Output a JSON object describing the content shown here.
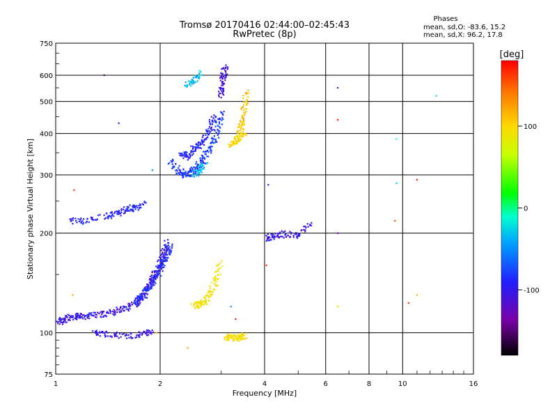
{
  "chart_data": {
    "type": "scatter",
    "title": "Tromsø 20170416 02:44:00–02:45:43",
    "subtitle": "RwPretec (8p)",
    "xlabel": "Frequency [MHz]",
    "ylabel": "Stationary phase Virtual Height [km]",
    "x_scale": "log2",
    "y_scale": "log",
    "xlim": [
      1,
      16
    ],
    "ylim": [
      75,
      750
    ],
    "x_ticks": [
      1,
      2,
      4,
      6,
      8,
      10,
      16
    ],
    "y_ticks": [
      75,
      100,
      200,
      300,
      400,
      500,
      600,
      750
    ],
    "phase_stats": {
      "title": "Phases",
      "line_o": "mean, sd,O: -83.6, 15.2",
      "line_x": "mean, sd,X:  96.2, 17.8"
    },
    "colorbar": {
      "label": "[deg]",
      "range": [
        -180,
        180
      ],
      "ticks": [
        100,
        0,
        -100
      ]
    },
    "traces": [
      {
        "name": "o-trace-low",
        "x": [
          1.02,
          1.05,
          1.1,
          1.15,
          1.2,
          1.3,
          1.4,
          1.5,
          1.6,
          1.7,
          1.75,
          1.8,
          1.85,
          1.9,
          1.95,
          2.0,
          2.05,
          2.1
        ],
        "y": [
          108,
          109,
          111,
          112,
          112,
          113,
          114,
          116,
          119,
          122,
          126,
          131,
          138,
          145,
          152,
          160,
          175,
          190
        ],
        "phase": -110
      },
      {
        "name": "o-trace-low-b",
        "x": [
          1.7,
          1.8,
          1.9,
          2.0,
          2.05,
          2.1,
          2.15
        ],
        "y": [
          124,
          130,
          140,
          155,
          165,
          172,
          185
        ],
        "phase": -95
      },
      {
        "name": "o-trace-mid",
        "x": [
          2.15,
          2.25,
          2.35,
          2.45,
          2.55,
          2.65,
          2.75,
          2.85,
          2.95,
          3.0
        ],
        "y": [
          330,
          310,
          300,
          305,
          315,
          330,
          355,
          380,
          420,
          470
        ],
        "phase": -90
      },
      {
        "name": "o-trace-mid-b",
        "x": [
          2.3,
          2.4,
          2.5,
          2.6,
          2.7,
          2.8,
          2.9
        ],
        "y": [
          350,
          340,
          360,
          370,
          390,
          420,
          460
        ],
        "phase": -100
      },
      {
        "name": "o-trace-mid-c",
        "x": [
          2.5,
          2.6,
          2.7
        ],
        "y": [
          300,
          310,
          325
        ],
        "phase": -40
      },
      {
        "name": "o-trace-top",
        "x": [
          2.4,
          2.5,
          2.6
        ],
        "y": [
          560,
          580,
          620
        ],
        "phase": -40
      },
      {
        "name": "o-trace-cusp",
        "x": [
          3.0,
          3.02,
          3.05,
          3.1
        ],
        "y": [
          520,
          560,
          600,
          640
        ],
        "phase": -115
      },
      {
        "name": "o-trace-2",
        "x": [
          1.1,
          1.2,
          1.4,
          1.5,
          1.6,
          1.7,
          1.8
        ],
        "y": [
          217,
          218,
          225,
          230,
          235,
          240,
          245
        ],
        "phase": -100
      },
      {
        "name": "o-trace-3",
        "x": [
          4.05,
          4.3,
          4.6,
          5.0,
          5.5
        ],
        "y": [
          193,
          196,
          199,
          197,
          218
        ],
        "phase": -110
      },
      {
        "name": "x-trace-1",
        "x": [
          3.2,
          3.3,
          3.4,
          3.5
        ],
        "y": [
          370,
          380,
          390,
          400
        ],
        "phase": 95
      },
      {
        "name": "x-trace-2",
        "x": [
          3.4,
          3.45,
          3.5,
          3.55
        ],
        "y": [
          400,
          430,
          480,
          540
        ],
        "phase": 110
      },
      {
        "name": "x-trace-3",
        "x": [
          2.5,
          2.6,
          2.7,
          2.8,
          2.9,
          3.0
        ],
        "y": [
          120,
          122,
          125,
          132,
          145,
          165
        ],
        "phase": 90
      },
      {
        "name": "x-trace-4",
        "x": [
          3.1,
          3.2,
          3.3,
          3.4,
          3.5
        ],
        "y": [
          97,
          97,
          96,
          97,
          98
        ],
        "phase": 95
      },
      {
        "name": "o-echo-low",
        "x": [
          1.3,
          1.4,
          1.6,
          1.8,
          1.9
        ],
        "y": [
          100,
          99,
          98,
          99,
          100
        ],
        "phase": -110
      }
    ],
    "scatter_points": [
      {
        "x": 1.13,
        "y": 270,
        "phase": 160
      },
      {
        "x": 1.38,
        "y": 600,
        "phase": -160
      },
      {
        "x": 1.52,
        "y": 430,
        "phase": -110
      },
      {
        "x": 1.12,
        "y": 130,
        "phase": 120
      },
      {
        "x": 1.9,
        "y": 310,
        "phase": -60
      },
      {
        "x": 4.1,
        "y": 280,
        "phase": -110
      },
      {
        "x": 4.05,
        "y": 160,
        "phase": 160
      },
      {
        "x": 6.5,
        "y": 550,
        "phase": -140
      },
      {
        "x": 6.5,
        "y": 440,
        "phase": 170
      },
      {
        "x": 6.5,
        "y": 200,
        "phase": -140
      },
      {
        "x": 6.5,
        "y": 120,
        "phase": 100
      },
      {
        "x": 9.6,
        "y": 385,
        "phase": -20
      },
      {
        "x": 9.6,
        "y": 283,
        "phase": -30
      },
      {
        "x": 9.5,
        "y": 218,
        "phase": 150
      },
      {
        "x": 11.0,
        "y": 290,
        "phase": 170
      },
      {
        "x": 11.0,
        "y": 130,
        "phase": 120
      },
      {
        "x": 10.4,
        "y": 123,
        "phase": 160
      },
      {
        "x": 12.5,
        "y": 520,
        "phase": -30
      },
      {
        "x": 3.3,
        "y": 110,
        "phase": 170
      },
      {
        "x": 3.2,
        "y": 120,
        "phase": -50
      },
      {
        "x": 2.4,
        "y": 90,
        "phase": 120
      },
      {
        "x": 1.95,
        "y": 100,
        "phase": 110
      }
    ]
  }
}
